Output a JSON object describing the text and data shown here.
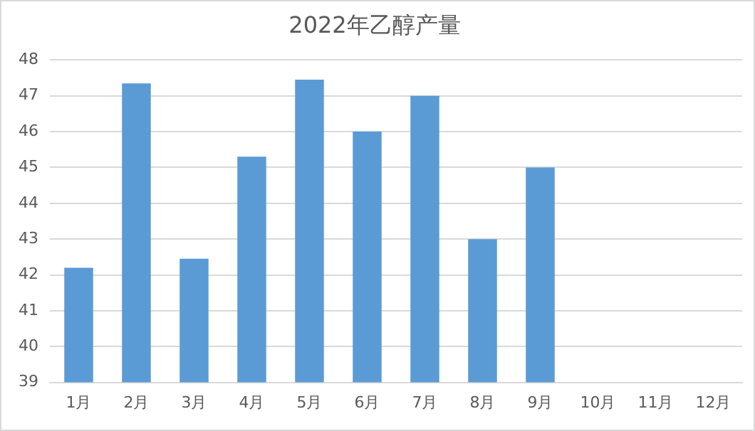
{
  "chart_data": {
    "type": "bar",
    "title": "2022年乙醇产量",
    "categories": [
      "1月",
      "2月",
      "3月",
      "4月",
      "5月",
      "6月",
      "7月",
      "8月",
      "9月",
      "10月",
      "11月",
      "12月"
    ],
    "values": [
      42.2,
      47.35,
      42.45,
      45.3,
      47.45,
      46.0,
      47.0,
      43.0,
      45.0,
      null,
      null,
      null
    ],
    "color": "#5b9bd5",
    "ylim": [
      39,
      48
    ],
    "yticks": [
      39,
      40,
      41,
      42,
      43,
      44,
      45,
      46,
      47,
      48
    ],
    "grid": "y",
    "legend": false
  }
}
